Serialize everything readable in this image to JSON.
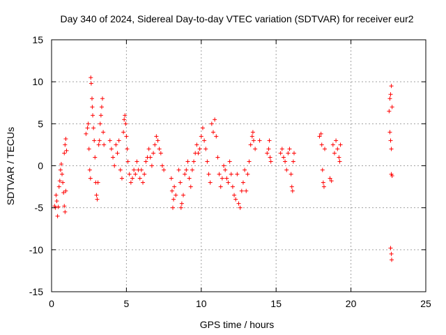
{
  "chart_data": {
    "type": "scatter",
    "title": "Day 340 of 2024, Sidereal Day-to-day VTEC variation (SDTVAR) for receiver eur2",
    "xlabel": "GPS time / hours",
    "ylabel": "SDTVAR / TECUs",
    "xlim": [
      0,
      25
    ],
    "ylim": [
      -15,
      15
    ],
    "xticks": [
      0,
      5,
      10,
      15,
      20,
      25
    ],
    "yticks": [
      -15,
      -10,
      -5,
      0,
      5,
      10,
      15
    ],
    "grid": true,
    "marker": "+",
    "color": "#ff0000",
    "series": [
      {
        "name": "SDTVAR",
        "points": [
          [
            0.2,
            -4.8
          ],
          [
            0.25,
            -5.0
          ],
          [
            0.3,
            -3.5
          ],
          [
            0.35,
            -4.2
          ],
          [
            0.4,
            -6.0
          ],
          [
            0.45,
            -4.9
          ],
          [
            0.5,
            -2.5
          ],
          [
            0.55,
            -1.8
          ],
          [
            0.6,
            -0.5
          ],
          [
            0.65,
            0.2
          ],
          [
            0.7,
            -1.0
          ],
          [
            0.75,
            -2.0
          ],
          [
            0.8,
            -3.2
          ],
          [
            0.85,
            -4.8
          ],
          [
            0.9,
            -5.5
          ],
          [
            0.95,
            -3.0
          ],
          [
            0.85,
            1.5
          ],
          [
            0.9,
            2.5
          ],
          [
            0.95,
            3.2
          ],
          [
            1.0,
            1.8
          ],
          [
            2.3,
            3.8
          ],
          [
            2.4,
            4.5
          ],
          [
            2.45,
            5.0
          ],
          [
            2.5,
            2.0
          ],
          [
            2.55,
            -0.5
          ],
          [
            2.6,
            -1.5
          ],
          [
            2.62,
            10.5
          ],
          [
            2.65,
            9.8
          ],
          [
            2.7,
            8.0
          ],
          [
            2.72,
            7.0
          ],
          [
            2.75,
            6.0
          ],
          [
            2.8,
            4.5
          ],
          [
            2.85,
            3.0
          ],
          [
            2.9,
            1.0
          ],
          [
            2.95,
            -2.0
          ],
          [
            3.0,
            -3.5
          ],
          [
            3.05,
            -4.0
          ],
          [
            3.1,
            -2.0
          ],
          [
            3.15,
            2.5
          ],
          [
            3.2,
            3.0
          ],
          [
            3.25,
            5.0
          ],
          [
            3.3,
            6.0
          ],
          [
            3.35,
            7.0
          ],
          [
            3.4,
            8.0
          ],
          [
            3.45,
            4.0
          ],
          [
            3.5,
            2.5
          ],
          [
            3.9,
            3.0
          ],
          [
            4.0,
            2.0
          ],
          [
            4.1,
            1.0
          ],
          [
            4.2,
            0.0
          ],
          [
            4.3,
            2.5
          ],
          [
            4.4,
            1.5
          ],
          [
            4.5,
            3.0
          ],
          [
            4.6,
            -0.5
          ],
          [
            4.7,
            -1.5
          ],
          [
            4.8,
            4.0
          ],
          [
            4.85,
            5.5
          ],
          [
            4.9,
            6.0
          ],
          [
            4.95,
            5.0
          ],
          [
            5.0,
            3.5
          ],
          [
            5.05,
            2.0
          ],
          [
            5.1,
            0.5
          ],
          [
            5.2,
            -1.0
          ],
          [
            5.3,
            -2.0
          ],
          [
            5.4,
            -1.5
          ],
          [
            5.5,
            -0.5
          ],
          [
            5.6,
            -1.0
          ],
          [
            5.7,
            0.5
          ],
          [
            5.8,
            -0.5
          ],
          [
            5.9,
            -1.5
          ],
          [
            6.0,
            -0.5
          ],
          [
            6.1,
            -2.0
          ],
          [
            6.2,
            -1.0
          ],
          [
            6.3,
            0.5
          ],
          [
            6.4,
            1.0
          ],
          [
            6.5,
            2.0
          ],
          [
            6.6,
            1.0
          ],
          [
            6.7,
            0.0
          ],
          [
            6.8,
            1.5
          ],
          [
            6.9,
            2.5
          ],
          [
            7.0,
            3.5
          ],
          [
            7.1,
            3.0
          ],
          [
            7.2,
            2.0
          ],
          [
            7.3,
            1.5
          ],
          [
            7.4,
            0.0
          ],
          [
            7.5,
            -0.5
          ],
          [
            8.0,
            -1.5
          ],
          [
            8.05,
            -3.0
          ],
          [
            8.1,
            -5.0
          ],
          [
            8.15,
            -4.0
          ],
          [
            8.2,
            -2.5
          ],
          [
            8.3,
            -3.5
          ],
          [
            8.5,
            -0.5
          ],
          [
            8.6,
            -2.0
          ],
          [
            8.65,
            -5.0
          ],
          [
            8.7,
            -4.5
          ],
          [
            8.8,
            -3.5
          ],
          [
            8.9,
            -1.0
          ],
          [
            9.0,
            -0.5
          ],
          [
            9.1,
            0.5
          ],
          [
            9.2,
            -1.5
          ],
          [
            9.3,
            -2.5
          ],
          [
            9.4,
            -0.5
          ],
          [
            9.5,
            0.5
          ],
          [
            9.6,
            1.5
          ],
          [
            9.7,
            2.5
          ],
          [
            9.8,
            1.5
          ],
          [
            9.9,
            2.0
          ],
          [
            10.0,
            3.5
          ],
          [
            10.1,
            4.5
          ],
          [
            10.2,
            3.0
          ],
          [
            10.3,
            2.0
          ],
          [
            10.4,
            0.5
          ],
          [
            10.5,
            -1.0
          ],
          [
            10.6,
            -2.0
          ],
          [
            10.7,
            5.0
          ],
          [
            10.8,
            4.0
          ],
          [
            10.9,
            5.5
          ],
          [
            11.0,
            3.5
          ],
          [
            11.1,
            1.0
          ],
          [
            11.2,
            -1.0
          ],
          [
            11.3,
            -2.5
          ],
          [
            11.4,
            -1.5
          ],
          [
            11.5,
            0.0
          ],
          [
            11.6,
            -0.5
          ],
          [
            11.7,
            -1.5
          ],
          [
            11.8,
            -2.0
          ],
          [
            11.9,
            0.5
          ],
          [
            12.0,
            -1.0
          ],
          [
            12.1,
            -2.5
          ],
          [
            12.2,
            -3.5
          ],
          [
            12.3,
            -4.0
          ],
          [
            12.4,
            -1.0
          ],
          [
            12.5,
            -4.5
          ],
          [
            12.6,
            -5.0
          ],
          [
            12.7,
            -3.0
          ],
          [
            12.8,
            -2.0
          ],
          [
            12.9,
            -0.5
          ],
          [
            13.0,
            -3.0
          ],
          [
            13.1,
            -1.0
          ],
          [
            13.2,
            0.5
          ],
          [
            13.3,
            2.5
          ],
          [
            13.4,
            3.5
          ],
          [
            13.45,
            4.0
          ],
          [
            13.5,
            3.0
          ],
          [
            13.6,
            2.0
          ],
          [
            13.9,
            3.0
          ],
          [
            14.4,
            1.5
          ],
          [
            14.5,
            2.0
          ],
          [
            14.55,
            3.0
          ],
          [
            14.6,
            1.0
          ],
          [
            14.65,
            0.5
          ],
          [
            15.3,
            1.5
          ],
          [
            15.4,
            2.0
          ],
          [
            15.5,
            1.0
          ],
          [
            15.6,
            0.5
          ],
          [
            15.7,
            -0.5
          ],
          [
            15.8,
            1.5
          ],
          [
            15.9,
            2.0
          ],
          [
            16.0,
            -1.0
          ],
          [
            16.05,
            -2.5
          ],
          [
            16.1,
            -3.0
          ],
          [
            16.15,
            0.5
          ],
          [
            16.2,
            1.5
          ],
          [
            17.9,
            3.5
          ],
          [
            18.0,
            3.8
          ],
          [
            18.05,
            2.5
          ],
          [
            18.1,
            -0.5
          ],
          [
            18.15,
            -2.0
          ],
          [
            18.2,
            -2.5
          ],
          [
            18.25,
            2.0
          ],
          [
            18.6,
            -1.5
          ],
          [
            18.7,
            -1.8
          ],
          [
            18.8,
            2.5
          ],
          [
            18.9,
            1.5
          ],
          [
            19.0,
            3.0
          ],
          [
            19.1,
            2.0
          ],
          [
            19.2,
            1.0
          ],
          [
            19.25,
            0.5
          ],
          [
            19.3,
            2.5
          ],
          [
            22.55,
            6.5
          ],
          [
            22.6,
            8.0
          ],
          [
            22.65,
            8.5
          ],
          [
            22.7,
            9.5
          ],
          [
            22.75,
            7.0
          ],
          [
            22.6,
            4.0
          ],
          [
            22.65,
            3.0
          ],
          [
            22.7,
            2.0
          ],
          [
            22.7,
            -1.0
          ],
          [
            22.75,
            -1.2
          ],
          [
            22.65,
            -9.8
          ],
          [
            22.7,
            -10.5
          ],
          [
            22.72,
            -11.2
          ]
        ]
      }
    ]
  }
}
